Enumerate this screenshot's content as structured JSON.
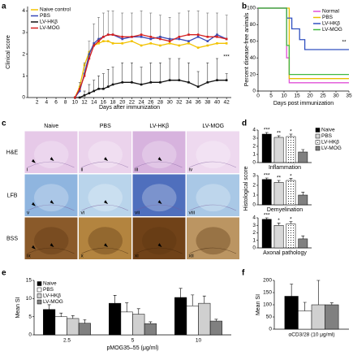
{
  "chart_data": [
    {
      "type": "line",
      "panel": "a",
      "ylabel": "Clinical score",
      "xlabel": "Days after immunization",
      "xlim": [
        0,
        43
      ],
      "xticks": [
        2,
        4,
        6,
        8,
        10,
        12,
        14,
        16,
        18,
        20,
        22,
        24,
        26,
        28,
        30,
        32,
        34,
        36,
        38,
        40,
        42
      ],
      "ylim": [
        0,
        4.2
      ],
      "yticks": [
        0,
        1,
        2,
        3,
        4
      ],
      "legend": "upper left",
      "annotation": "***",
      "x": [
        10,
        11,
        12,
        13,
        14,
        15,
        16,
        17,
        18,
        20,
        22,
        24,
        26,
        28,
        30,
        32,
        34,
        36,
        38,
        40,
        42
      ],
      "series": [
        {
          "name": "Naive control",
          "color": "#f2c200",
          "values": [
            0,
            0.5,
            1.5,
            2.1,
            2.4,
            2.5,
            2.6,
            2.6,
            2.5,
            2.5,
            2.6,
            2.4,
            2.5,
            2.4,
            2.5,
            2.4,
            2.5,
            2.3,
            2.4,
            2.5,
            2.5
          ]
        },
        {
          "name": "PBS",
          "color": "#3848b8",
          "values": [
            0,
            0.3,
            1.1,
            2.0,
            2.5,
            2.7,
            2.8,
            2.9,
            2.9,
            2.7,
            2.8,
            2.8,
            2.7,
            2.8,
            2.7,
            2.7,
            2.6,
            2.8,
            2.6,
            2.9,
            2.7
          ]
        },
        {
          "name": "LV-HKβ",
          "color": "#111111",
          "values": [
            0,
            0,
            0.1,
            0.2,
            0.3,
            0.4,
            0.4,
            0.5,
            0.6,
            0.7,
            0.7,
            0.6,
            0.7,
            0.7,
            0.8,
            0.8,
            0.7,
            0.5,
            0.7,
            0.8,
            0.8
          ],
          "errors": [
            0,
            0,
            0.2,
            0.4,
            0.5,
            0.6,
            0.7,
            0.8,
            0.8,
            0.9,
            0.9,
            0.8,
            0.9,
            0.9,
            1.0,
            1.0,
            0.9,
            0.7,
            0.9,
            1.0,
            0.3
          ]
        },
        {
          "name": "LV-MOG",
          "color": "#d42020",
          "values": [
            0,
            0.4,
            1.0,
            1.8,
            2.4,
            2.6,
            2.8,
            2.9,
            2.9,
            2.8,
            2.8,
            2.9,
            2.8,
            2.7,
            2.6,
            2.8,
            2.9,
            2.9,
            2.8,
            2.8,
            2.7
          ],
          "errors": [
            0,
            0.3,
            0.6,
            0.8,
            1.0,
            1.1,
            1.1,
            1.1,
            1.1,
            1.1,
            1.1,
            1.1,
            1.1,
            1.1,
            1.1,
            1.1,
            1.1,
            1.1,
            1.1,
            1.1,
            1.1
          ]
        }
      ]
    },
    {
      "type": "line",
      "panel": "b",
      "ylabel": "Percent disease-free animals",
      "xlabel": "Days post immunization",
      "xlim": [
        0,
        35
      ],
      "xticks": [
        0,
        5,
        10,
        15,
        20,
        25,
        30,
        35
      ],
      "ylim": [
        0,
        100
      ],
      "yticks": [
        0,
        20,
        40,
        60,
        80,
        100
      ],
      "legend": "upper right",
      "annotation": "**",
      "series": [
        {
          "name": "Normal",
          "color": "#e050d8",
          "x": [
            0,
            11,
            11,
            12,
            12,
            35
          ],
          "values": [
            100,
            100,
            40,
            40,
            10,
            10
          ]
        },
        {
          "name": "PBS",
          "color": "#e8c000",
          "x": [
            0,
            12,
            12,
            35
          ],
          "values": [
            100,
            100,
            15,
            15
          ]
        },
        {
          "name": "LV-HKβ",
          "color": "#3050c0",
          "x": [
            0,
            11,
            11,
            13,
            13,
            16,
            16,
            18,
            18,
            35
          ],
          "values": [
            100,
            100,
            88,
            88,
            75,
            75,
            62,
            62,
            50,
            50
          ]
        },
        {
          "name": "LV-MOG",
          "color": "#40b840",
          "x": [
            0,
            11,
            11,
            12,
            12,
            35
          ],
          "values": [
            100,
            100,
            55,
            55,
            20,
            20
          ]
        }
      ]
    },
    {
      "type": "bar",
      "panel": "d",
      "xlabel": "Inflammation",
      "ylim": [
        0,
        4
      ],
      "yticks": [
        0,
        1,
        2,
        3,
        4
      ],
      "legend": "right",
      "series": [
        {
          "name": "Naive",
          "color": "#000000",
          "values": [
            3.5
          ],
          "errors": [
            0.2
          ],
          "significance": [
            "***"
          ]
        },
        {
          "name": "PBS",
          "color": "#d8d8d8",
          "values": [
            3.1
          ],
          "errors": [
            0.2
          ],
          "significance": [
            "**"
          ]
        },
        {
          "name": "LV-HKβ",
          "color": "#ffffff",
          "pattern": "dots",
          "values": [
            3.2
          ],
          "errors": [
            0.3
          ],
          "significance": [
            "*"
          ]
        },
        {
          "name": "LV-MOG",
          "color": "#808080",
          "values": [
            1.3
          ],
          "errors": [
            0.3
          ]
        }
      ]
    },
    {
      "type": "bar",
      "xlabel": "Demyelination",
      "ylabel": "Histological score",
      "ylim": [
        0,
        3
      ],
      "yticks": [
        0,
        1,
        2,
        3
      ],
      "series": [
        {
          "color": "#000000",
          "values": [
            2.6
          ],
          "errors": [
            0.15
          ],
          "significance": [
            "***"
          ]
        },
        {
          "color": "#d8d8d8",
          "values": [
            2.3
          ],
          "errors": [
            0.2
          ],
          "significance": [
            "**"
          ]
        },
        {
          "color": "#ffffff",
          "pattern": "dots",
          "values": [
            2.5
          ],
          "errors": [
            0.2
          ],
          "significance": [
            "*"
          ]
        },
        {
          "color": "#808080",
          "values": [
            1.0
          ],
          "errors": [
            0.3
          ]
        }
      ]
    },
    {
      "type": "bar",
      "xlabel": "Axonal pathology",
      "ylim": [
        0,
        4
      ],
      "yticks": [
        0,
        1,
        2,
        3,
        4
      ],
      "series": [
        {
          "color": "#000000",
          "values": [
            3.8
          ],
          "errors": [
            0.2
          ],
          "significance": [
            "***"
          ]
        },
        {
          "color": "#d8d8d8",
          "values": [
            3.0
          ],
          "errors": [
            0.3
          ],
          "significance": [
            "*"
          ]
        },
        {
          "color": "#ffffff",
          "pattern": "dots",
          "values": [
            3.2
          ],
          "errors": [
            0.3
          ],
          "significance": [
            "*"
          ]
        },
        {
          "color": "#808080",
          "values": [
            1.2
          ],
          "errors": [
            0.4
          ]
        }
      ]
    },
    {
      "type": "bar",
      "panel": "e",
      "ylabel": "Mean SI",
      "xlabel": "pMOG35–55 (μg/ml)",
      "categories": [
        "2.5",
        "5",
        "10"
      ],
      "ylim": [
        0,
        15
      ],
      "yticks": [
        0,
        5,
        10,
        15
      ],
      "legend": "upper left",
      "series": [
        {
          "name": "Naive",
          "color": "#000000",
          "values": [
            7,
            8.7,
            10.3
          ],
          "errors": [
            1.3,
            2.2,
            2.5
          ]
        },
        {
          "name": "PBS",
          "color": "#ffffff",
          "values": [
            5,
            6.3,
            8
          ],
          "errors": [
            1,
            2.5,
            3
          ]
        },
        {
          "name": "LV-HKβ",
          "color": "#d0d0d0",
          "values": [
            4.5,
            5.7,
            8.7
          ],
          "errors": [
            0.8,
            1.5,
            2
          ]
        },
        {
          "name": "LV-MOG",
          "color": "#808080",
          "values": [
            3.2,
            3.1,
            3.8
          ],
          "errors": [
            1,
            0.5,
            0.5
          ]
        }
      ]
    },
    {
      "type": "bar",
      "panel": "f",
      "ylabel": "Mean SI",
      "categories": [
        "αCD3/28 (10 μg/ml)"
      ],
      "ylim": [
        0,
        200
      ],
      "yticks": [
        0,
        50,
        100,
        150,
        200
      ],
      "series": [
        {
          "color": "#000000",
          "values": [
            135
          ],
          "errors": [
            50
          ]
        },
        {
          "color": "#ffffff",
          "values": [
            75
          ],
          "errors": [
            35
          ]
        },
        {
          "color": "#d0d0d0",
          "values": [
            100
          ],
          "errors": [
            100
          ]
        },
        {
          "color": "#808080",
          "values": [
            100
          ],
          "errors": [
            8
          ]
        }
      ]
    }
  ],
  "histology": {
    "panel": "c",
    "columns": [
      "Naive",
      "PBS",
      "LV-HKβ",
      "LV-MOG"
    ],
    "rows": [
      "H&E",
      "LFB",
      "BSS"
    ],
    "numerals": [
      "i",
      "ii",
      "iii",
      "iv",
      "v",
      "vi",
      "vii",
      "viii",
      "ix",
      "x",
      "xi",
      "xii"
    ]
  }
}
